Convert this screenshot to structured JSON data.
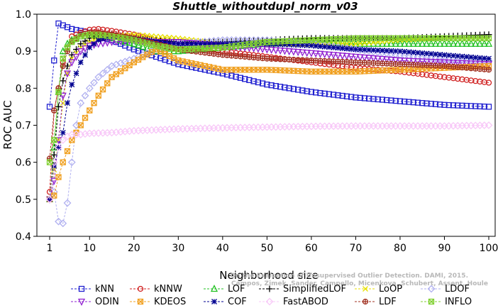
{
  "chart_data": {
    "type": "line",
    "title": "Shuttle_withoutdupl_norm_v03",
    "xlabel": "Neighborhood size",
    "ylabel": "ROC AUC",
    "xlim": [
      1,
      100
    ],
    "ylim": [
      0.4,
      1.0
    ],
    "x_ticks": [
      1,
      10,
      20,
      30,
      40,
      50,
      60,
      70,
      80,
      90,
      100
    ],
    "y_ticks": [
      0.4,
      0.5,
      0.6,
      0.7,
      0.8,
      0.9,
      1.0
    ],
    "grid": false,
    "legend_position": "bottom",
    "watermark": [
      "Campos, Zimek, Sander, Campello, Micenkova, Schubert, Assent, Houle",
      "On the Evaluation of Unsupervised Outlier Detection. DAMI, 2015."
    ],
    "series": [
      {
        "name": "kNN",
        "color": "#2020d0",
        "marker": "square",
        "points": [
          [
            1,
            0.75
          ],
          [
            2,
            0.875
          ],
          [
            3,
            0.975
          ],
          [
            4,
            0.97
          ],
          [
            5,
            0.965
          ],
          [
            6,
            0.96
          ],
          [
            8,
            0.955
          ],
          [
            10,
            0.95
          ],
          [
            12,
            0.94
          ],
          [
            15,
            0.93
          ],
          [
            20,
            0.905
          ],
          [
            25,
            0.885
          ],
          [
            30,
            0.865
          ],
          [
            40,
            0.84
          ],
          [
            50,
            0.81
          ],
          [
            60,
            0.79
          ],
          [
            70,
            0.775
          ],
          [
            80,
            0.765
          ],
          [
            90,
            0.755
          ],
          [
            100,
            0.75
          ]
        ]
      },
      {
        "name": "kNNW",
        "color": "#d02020",
        "marker": "circle",
        "points": [
          [
            1,
            0.52
          ],
          [
            2,
            0.74
          ],
          [
            3,
            0.8
          ],
          [
            4,
            0.87
          ],
          [
            5,
            0.91
          ],
          [
            6,
            0.94
          ],
          [
            8,
            0.95
          ],
          [
            10,
            0.958
          ],
          [
            12,
            0.96
          ],
          [
            15,
            0.955
          ],
          [
            20,
            0.945
          ],
          [
            25,
            0.93
          ],
          [
            30,
            0.915
          ],
          [
            40,
            0.9
          ],
          [
            50,
            0.885
          ],
          [
            60,
            0.87
          ],
          [
            70,
            0.855
          ],
          [
            80,
            0.845
          ],
          [
            90,
            0.83
          ],
          [
            100,
            0.815
          ]
        ]
      },
      {
        "name": "LOF",
        "color": "#20c020",
        "marker": "triangle-up",
        "points": [
          [
            1,
            0.5
          ],
          [
            2,
            0.64
          ],
          [
            3,
            0.79
          ],
          [
            4,
            0.9
          ],
          [
            5,
            0.92
          ],
          [
            6,
            0.93
          ],
          [
            8,
            0.94
          ],
          [
            10,
            0.945
          ],
          [
            12,
            0.94
          ],
          [
            15,
            0.935
          ],
          [
            20,
            0.92
          ],
          [
            25,
            0.9
          ],
          [
            30,
            0.9
          ],
          [
            40,
            0.91
          ],
          [
            50,
            0.92
          ],
          [
            60,
            0.925
          ],
          [
            70,
            0.92
          ],
          [
            80,
            0.92
          ],
          [
            90,
            0.92
          ],
          [
            100,
            0.92
          ]
        ]
      },
      {
        "name": "SimplifiedLOF",
        "color": "#000000",
        "marker": "plus",
        "points": [
          [
            1,
            0.5
          ],
          [
            2,
            0.62
          ],
          [
            3,
            0.75
          ],
          [
            4,
            0.82
          ],
          [
            5,
            0.86
          ],
          [
            6,
            0.89
          ],
          [
            8,
            0.92
          ],
          [
            10,
            0.935
          ],
          [
            12,
            0.945
          ],
          [
            15,
            0.945
          ],
          [
            20,
            0.935
          ],
          [
            25,
            0.93
          ],
          [
            30,
            0.925
          ],
          [
            40,
            0.925
          ],
          [
            50,
            0.93
          ],
          [
            60,
            0.935
          ],
          [
            70,
            0.935
          ],
          [
            80,
            0.935
          ],
          [
            90,
            0.94
          ],
          [
            100,
            0.945
          ]
        ]
      },
      {
        "name": "LoOP",
        "color": "#e8e000",
        "marker": "x",
        "points": [
          [
            1,
            0.5
          ],
          [
            2,
            0.58
          ],
          [
            3,
            0.66
          ],
          [
            4,
            0.76
          ],
          [
            5,
            0.84
          ],
          [
            6,
            0.88
          ],
          [
            8,
            0.91
          ],
          [
            10,
            0.925
          ],
          [
            12,
            0.935
          ],
          [
            15,
            0.94
          ],
          [
            20,
            0.945
          ],
          [
            25,
            0.94
          ],
          [
            30,
            0.935
          ],
          [
            40,
            0.92
          ],
          [
            50,
            0.92
          ],
          [
            60,
            0.92
          ],
          [
            70,
            0.92
          ],
          [
            80,
            0.93
          ],
          [
            90,
            0.935
          ],
          [
            100,
            0.935
          ]
        ]
      },
      {
        "name": "LDOF",
        "color": "#b0b0f0",
        "marker": "diamond",
        "points": [
          [
            1,
            0.5
          ],
          [
            2,
            0.52
          ],
          [
            3,
            0.44
          ],
          [
            4,
            0.435
          ],
          [
            5,
            0.49
          ],
          [
            6,
            0.6
          ],
          [
            7,
            0.7
          ],
          [
            8,
            0.76
          ],
          [
            10,
            0.8
          ],
          [
            12,
            0.83
          ],
          [
            15,
            0.86
          ],
          [
            20,
            0.88
          ],
          [
            25,
            0.905
          ],
          [
            30,
            0.92
          ],
          [
            40,
            0.93
          ],
          [
            50,
            0.93
          ],
          [
            60,
            0.92
          ],
          [
            70,
            0.905
          ],
          [
            80,
            0.89
          ],
          [
            90,
            0.88
          ],
          [
            100,
            0.875
          ]
        ]
      },
      {
        "name": "ODIN",
        "color": "#9020d0",
        "marker": "triangle-down",
        "points": [
          [
            1,
            0.5
          ],
          [
            2,
            0.55
          ],
          [
            3,
            0.66
          ],
          [
            4,
            0.78
          ],
          [
            5,
            0.84
          ],
          [
            6,
            0.87
          ],
          [
            8,
            0.9
          ],
          [
            10,
            0.915
          ],
          [
            12,
            0.92
          ],
          [
            15,
            0.925
          ],
          [
            20,
            0.93
          ],
          [
            25,
            0.925
          ],
          [
            30,
            0.925
          ],
          [
            40,
            0.915
          ],
          [
            50,
            0.905
          ],
          [
            60,
            0.895
          ],
          [
            70,
            0.885
          ],
          [
            80,
            0.875
          ],
          [
            90,
            0.87
          ],
          [
            100,
            0.865
          ]
        ]
      },
      {
        "name": "KDEOS",
        "color": "#f0a020",
        "marker": "square-x",
        "points": [
          [
            1,
            0.5
          ],
          [
            2,
            0.51
          ],
          [
            3,
            0.56
          ],
          [
            4,
            0.6
          ],
          [
            5,
            0.63
          ],
          [
            6,
            0.66
          ],
          [
            8,
            0.7
          ],
          [
            10,
            0.74
          ],
          [
            12,
            0.78
          ],
          [
            15,
            0.83
          ],
          [
            20,
            0.87
          ],
          [
            25,
            0.905
          ],
          [
            30,
            0.875
          ],
          [
            40,
            0.85
          ],
          [
            50,
            0.85
          ],
          [
            60,
            0.845
          ],
          [
            70,
            0.845
          ],
          [
            80,
            0.85
          ],
          [
            90,
            0.855
          ],
          [
            100,
            0.86
          ]
        ]
      },
      {
        "name": "COF",
        "color": "#000090",
        "marker": "asterisk",
        "points": [
          [
            1,
            0.5
          ],
          [
            2,
            0.59
          ],
          [
            3,
            0.64
          ],
          [
            4,
            0.68
          ],
          [
            5,
            0.76
          ],
          [
            6,
            0.81
          ],
          [
            8,
            0.87
          ],
          [
            10,
            0.91
          ],
          [
            12,
            0.93
          ],
          [
            15,
            0.94
          ],
          [
            20,
            0.935
          ],
          [
            25,
            0.925
          ],
          [
            30,
            0.92
          ],
          [
            40,
            0.92
          ],
          [
            50,
            0.92
          ],
          [
            60,
            0.915
          ],
          [
            70,
            0.905
          ],
          [
            80,
            0.9
          ],
          [
            90,
            0.89
          ],
          [
            100,
            0.88
          ]
        ]
      },
      {
        "name": "FastABOD",
        "color": "#f8c8f8",
        "marker": "diamond",
        "points": [
          [
            1,
            0.5
          ],
          [
            2,
            0.6
          ],
          [
            3,
            0.64
          ],
          [
            4,
            0.66
          ],
          [
            5,
            0.67
          ],
          [
            6,
            0.675
          ],
          [
            8,
            0.675
          ],
          [
            10,
            0.678
          ],
          [
            15,
            0.68
          ],
          [
            20,
            0.685
          ],
          [
            30,
            0.69
          ],
          [
            40,
            0.693
          ],
          [
            50,
            0.695
          ],
          [
            60,
            0.697
          ],
          [
            70,
            0.698
          ],
          [
            80,
            0.698
          ],
          [
            90,
            0.698
          ],
          [
            100,
            0.7
          ]
        ]
      },
      {
        "name": "LDF",
        "color": "#a03020",
        "marker": "circle-plus",
        "points": [
          [
            1,
            0.61
          ],
          [
            2,
            0.74
          ],
          [
            3,
            0.8
          ],
          [
            4,
            0.86
          ],
          [
            5,
            0.9
          ],
          [
            6,
            0.925
          ],
          [
            8,
            0.945
          ],
          [
            10,
            0.95
          ],
          [
            12,
            0.95
          ],
          [
            15,
            0.945
          ],
          [
            20,
            0.935
          ],
          [
            25,
            0.92
          ],
          [
            30,
            0.905
          ],
          [
            40,
            0.89
          ],
          [
            50,
            0.88
          ],
          [
            60,
            0.875
          ],
          [
            70,
            0.87
          ],
          [
            80,
            0.865
          ],
          [
            90,
            0.86
          ],
          [
            100,
            0.85
          ]
        ]
      },
      {
        "name": "INFLO",
        "color": "#80d030",
        "marker": "square-x",
        "points": [
          [
            1,
            0.6
          ],
          [
            2,
            0.66
          ],
          [
            3,
            0.79
          ],
          [
            4,
            0.88
          ],
          [
            5,
            0.91
          ],
          [
            6,
            0.925
          ],
          [
            8,
            0.94
          ],
          [
            10,
            0.945
          ],
          [
            12,
            0.945
          ],
          [
            15,
            0.94
          ],
          [
            20,
            0.93
          ],
          [
            25,
            0.915
          ],
          [
            30,
            0.905
          ],
          [
            40,
            0.91
          ],
          [
            50,
            0.925
          ],
          [
            60,
            0.93
          ],
          [
            70,
            0.935
          ],
          [
            80,
            0.935
          ],
          [
            90,
            0.935
          ],
          [
            100,
            0.935
          ]
        ]
      }
    ]
  }
}
